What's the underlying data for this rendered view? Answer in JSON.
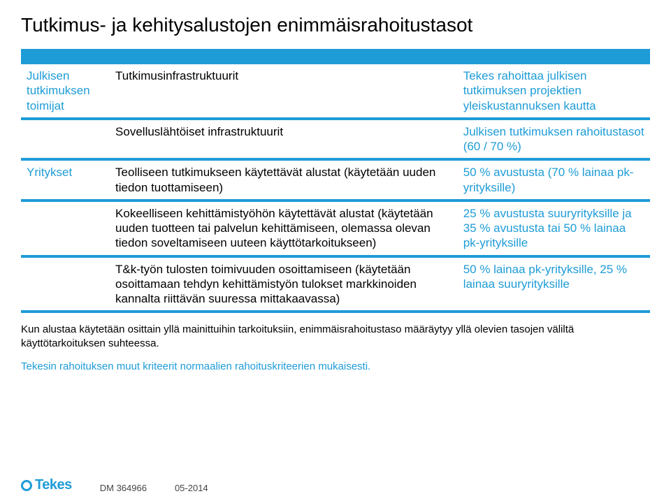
{
  "title": "Tutkimus- ja kehitysalustojen enimmäisrahoitustasot",
  "rows": [
    {
      "left": "Julkisen tutkimuksen toimijat",
      "mid": "Tutkimusinfrastruktuurit",
      "right": "Tekes rahoittaa julkisen tutkimuksen projektien yleiskustannuksen kautta"
    },
    {
      "left": "",
      "mid": "Sovelluslähtöiset infrastruktuurit",
      "right": "Julkisen tutkimuksen rahoitustasot (60 / 70 %)"
    },
    {
      "left": "Yritykset",
      "mid": "Teolliseen tutkimukseen käytettävät alustat (käytetään uuden tiedon tuottamiseen)",
      "right": "50 % avustusta (70 % lainaa pk-yrityksille)"
    },
    {
      "left": "",
      "mid": "Kokeelliseen kehittämistyöhön käytettävät alustat (käytetään uuden tuotteen tai palvelun kehittämiseen, olemassa olevan tiedon soveltamiseen uuteen käyttötarkoitukseen)",
      "right": "25 % avustusta suuryrityksille ja 35 % avustusta tai 50 % lainaa pk-yrityksille"
    },
    {
      "left": "",
      "mid": "T&k-työn tulosten toimivuuden osoittamiseen (käytetään osoittamaan tehdyn kehittämistyön tulokset markkinoiden kannalta riittävän suuressa mittakaavassa)",
      "right": "50 % lainaa pk-yrityksille, 25 % lainaa suuryrityksille"
    }
  ],
  "note1": "Kun alustaa käytetään osittain yllä mainittuihin tarkoituksiin, enimmäisrahoitustaso määräytyy yllä olevien tasojen väliltä käyttötarkoituksen suhteessa.",
  "note2": "Tekesin rahoituksen muut kriteerit normaalien rahoituskriteerien mukaisesti.",
  "logo": "Tekes",
  "doc_id": "DM 364966",
  "doc_date": "05-2014",
  "colors": {
    "brand": "#1e9cd7",
    "text": "#000000",
    "bg": "#ffffff"
  }
}
